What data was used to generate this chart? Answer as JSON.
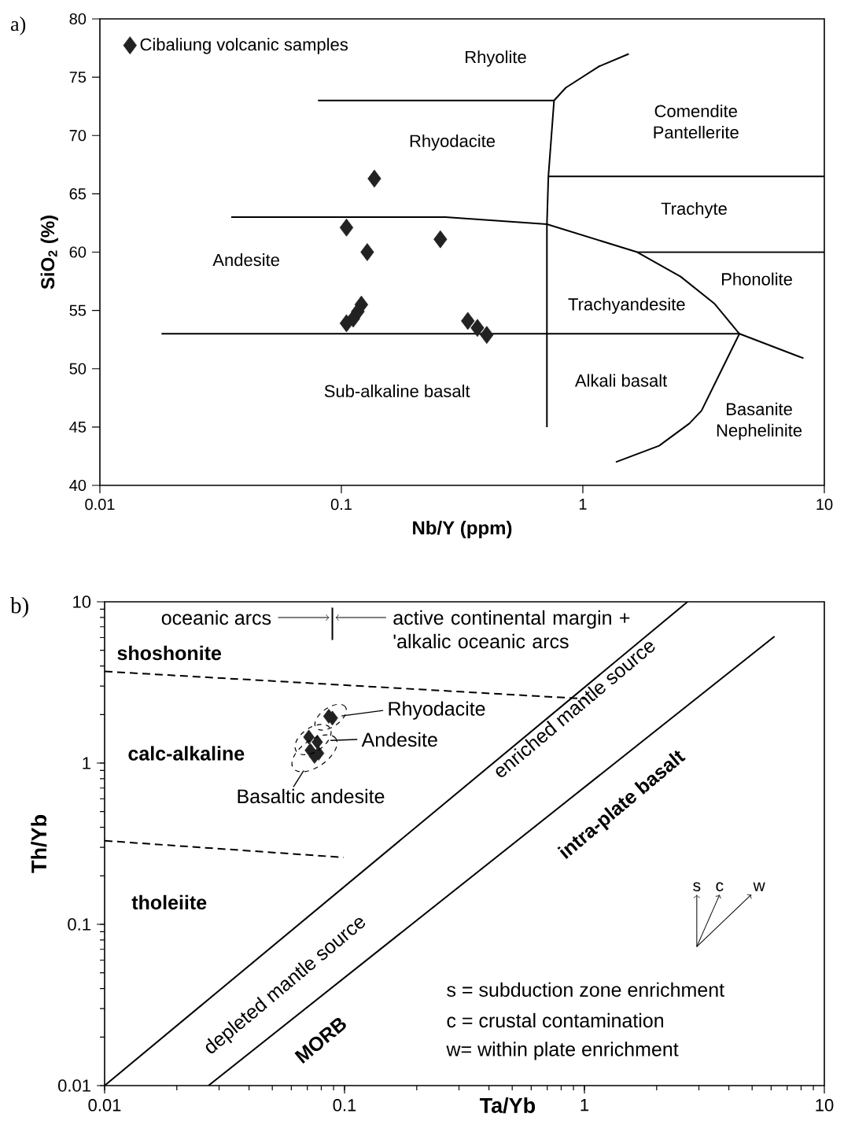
{
  "chart_data": [
    {
      "type": "scatter",
      "title": "a)",
      "xlabel": "Nb/Y (ppm)",
      "ylabel": "SiO$_{2}$ (%)",
      "log": "x",
      "xlim": [
        0.01,
        10
      ],
      "ylim": [
        40,
        80
      ],
      "xticks": [
        0.01,
        0.1,
        1,
        10
      ],
      "yticks": [
        40,
        45,
        50,
        55,
        60,
        65,
        70,
        75,
        80
      ],
      "legend": "top left",
      "series": [
        {
          "name": "Cibaliung volcanic samples",
          "marker": "diamond",
          "color": "#222222",
          "x": [
            0.137,
            0.105,
            0.128,
            0.257,
            0.121,
            0.117,
            0.112,
            0.105,
            0.334,
            0.366,
            0.4
          ],
          "values": [
            66.3,
            62.1,
            60.0,
            61.1,
            55.5,
            54.9,
            54.3,
            53.9,
            54.1,
            53.5,
            52.9
          ]
        },
        {
          "type": "line",
          "line_style": "solid",
          "color": "#000000",
          "x": [
            0.08,
            0.76
          ],
          "values": [
            73,
            73
          ]
        },
        {
          "type": "line",
          "line_style": "solid",
          "color": "#000000",
          "x": [
            0.76,
            0.85,
            1.16,
            1.55
          ],
          "values": [
            73,
            74.1,
            75.9,
            77.0
          ]
        },
        {
          "type": "line",
          "line_style": "solid",
          "color": "#000000",
          "x": [
            0.76,
            0.72,
            0.71,
            0.71
          ],
          "values": [
            73,
            66.5,
            62.4,
            45
          ]
        },
        {
          "type": "line",
          "line_style": "solid",
          "color": "#000000",
          "x": [
            0.72,
            10
          ],
          "values": [
            66.5,
            66.5
          ]
        },
        {
          "type": "line",
          "line_style": "solid",
          "color": "#000000",
          "x": [
            1.68,
            10
          ],
          "values": [
            60,
            60
          ]
        },
        {
          "type": "line",
          "line_style": "solid",
          "color": "#000000",
          "x": [
            0.035,
            0.27,
            0.71,
            1.68,
            2.54,
            3.5,
            4.45
          ],
          "values": [
            63,
            63,
            62.4,
            60,
            57.9,
            55.6,
            53
          ]
        },
        {
          "type": "line",
          "line_style": "solid",
          "color": "#000000",
          "x": [
            0.018,
            4.45,
            8.2
          ],
          "values": [
            53,
            53,
            50.9
          ]
        },
        {
          "type": "line",
          "line_style": "solid",
          "color": "#000000",
          "x": [
            4.45,
            3.1,
            2.76,
            2.07,
            1.37
          ],
          "values": [
            53,
            46.4,
            45.3,
            43.4,
            42
          ]
        }
      ],
      "annotations": [
        "Rhyolite",
        "Rhyodacite",
        "Comendite Pantellerite",
        "Trachyte",
        "Andesite",
        "Phonolite",
        "Trachyandesite",
        "Alkali basalt",
        "Sub-alkaline basalt",
        "Basanite Nephelinite"
      ]
    },
    {
      "type": "scatter",
      "title": "b)",
      "xlabel": "Ta/Yb",
      "ylabel": "Th/Yb",
      "log": "xy",
      "xlim": [
        0.01,
        10
      ],
      "ylim": [
        0.01,
        10
      ],
      "xticks": [
        0.01,
        0.1,
        1,
        10
      ],
      "yticks": [
        0.01,
        0.1,
        1,
        10
      ],
      "series": [
        {
          "type": "line",
          "line_style": "solid",
          "color": "#000000",
          "x": [
            0.01,
            2.69
          ],
          "values": [
            0.01,
            10
          ]
        },
        {
          "type": "line",
          "line_style": "solid",
          "color": "#000000",
          "x": [
            0.0271,
            6.2
          ],
          "values": [
            0.01,
            6.1
          ]
        },
        {
          "type": "line",
          "line_style": "dashed",
          "color": "#000000",
          "x": [
            0.01,
            1.02
          ],
          "values": [
            3.7,
            2.5
          ]
        },
        {
          "type": "line",
          "line_style": "dashed",
          "color": "#000000",
          "x": [
            0.01,
            0.099
          ],
          "values": [
            0.33,
            0.26
          ]
        },
        {
          "type": "line",
          "line_style": "solid",
          "color": "#000000",
          "x": [
            0.089,
            0.089
          ],
          "values": [
            5.8,
            9.2
          ]
        },
        {
          "marker": "diamond",
          "color": "#222222",
          "x": [
            0.086,
            0.089
          ],
          "values": [
            1.95,
            1.9
          ]
        },
        {
          "marker": "diamond",
          "color": "#222222",
          "x": [
            0.071,
            0.077
          ],
          "values": [
            1.45,
            1.35
          ]
        },
        {
          "marker": "diamond",
          "color": "#222222",
          "x": [
            0.072,
            0.075,
            0.078
          ],
          "values": [
            1.2,
            1.1,
            1.15
          ]
        }
      ],
      "annotations": [
        "oceanic arcs",
        "active continental margin + 'alkalic oceanic arcs",
        "shoshonite",
        "calc-alkaline",
        "tholeiite",
        {
          "text": "Rhyodacite",
          "x": 0.0875,
          "y": 1.92
        },
        {
          "text": "Andesite",
          "x": 0.074,
          "y": 1.37
        },
        {
          "text": "Basaltic andesite",
          "x": 0.075,
          "y": 1.15
        },
        "enriched mantle source",
        "depleted mantle source",
        "intra-plate basalt",
        "MORB",
        "s",
        "c",
        "w",
        "s = subduction zone enrichment",
        "c = crustal contamination",
        "w= within plate enrichment"
      ]
    }
  ]
}
